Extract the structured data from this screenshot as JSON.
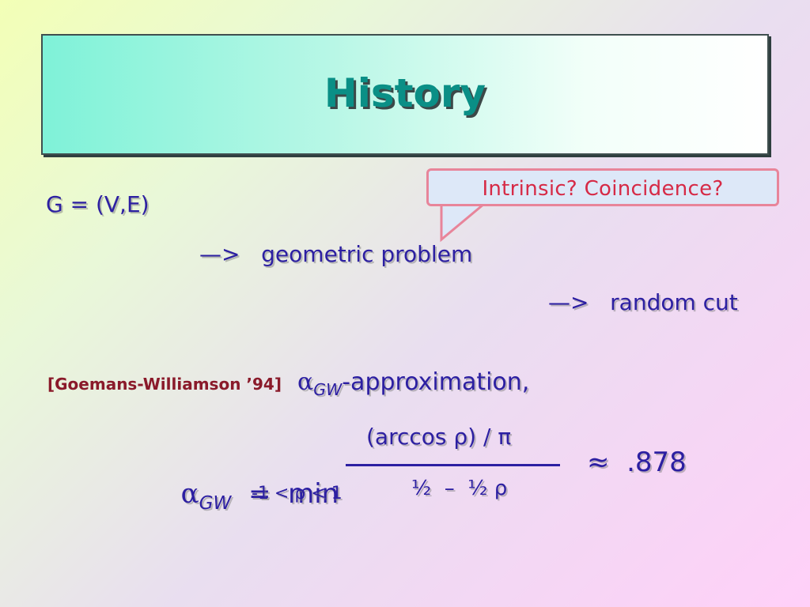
{
  "slide": {
    "title": "History",
    "callout": "Intrinsic?  Coincidence?",
    "graph_definition": "G = (V,E)",
    "step1": "—>   geometric problem",
    "step2": "—>   random cut",
    "citation": "[Goemans-Williamson ’94]",
    "approx_alpha": "α",
    "approx_subscript": "GW",
    "approx_suffix": "-approximation,",
    "formula": {
      "lhs_alpha": "α",
      "lhs_subscript": "GW",
      "equals_min": "  =  min",
      "range": "-1 < ρ < 1",
      "numerator": "(arccos ρ) / π",
      "denominator": "½  –  ½ ρ",
      "approx": "≈  .878"
    }
  },
  "colors": {
    "title": "#0a8f86",
    "body_text": "#2c1fa2",
    "callout_text": "#d62a46",
    "callout_border": "#e8859a",
    "citation": "#8a1a2a"
  }
}
